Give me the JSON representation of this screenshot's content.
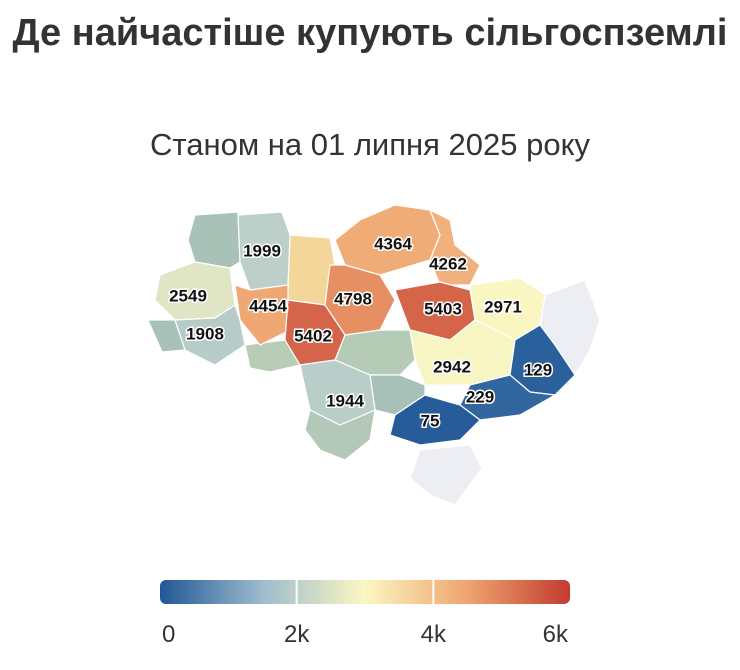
{
  "title": "Де найчастіше купують сільгоспземлі",
  "subtitle": "Станом на 01 липня 2025 року",
  "regions": [
    {
      "value": 1999
    },
    {
      "value": 4364
    },
    {
      "value": 4262
    },
    {
      "value": 2549
    },
    {
      "value": 4454
    },
    {
      "value": 4798
    },
    {
      "value": 5403
    },
    {
      "value": 2971
    },
    {
      "value": 1908
    },
    {
      "value": 5402
    },
    {
      "value": 2942
    },
    {
      "value": 129
    },
    {
      "value": 1944
    },
    {
      "value": 229
    },
    {
      "value": 75
    }
  ],
  "colorscale": [
    "#1f5796",
    "#9dbccc",
    "#fbf7c2",
    "#efa470",
    "#c23b30"
  ],
  "clim": [
    0,
    6000
  ],
  "cticks": [
    0,
    {
      "value": 2000,
      "label": "2k"
    },
    {
      "value": 4000,
      "label": "4k"
    },
    {
      "value": 6000,
      "label": "6k"
    }
  ]
}
